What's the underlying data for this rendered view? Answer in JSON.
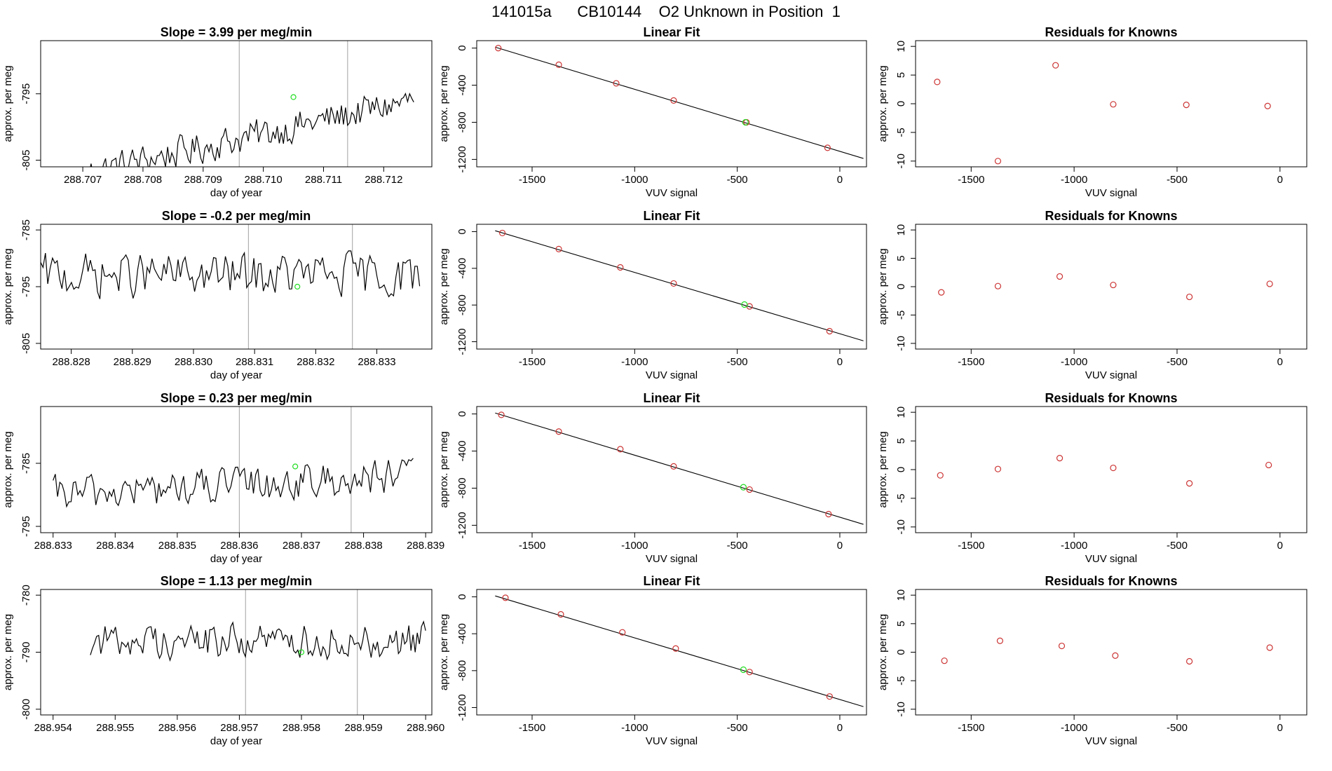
{
  "page": {
    "title": "141015a      CB10144    O2 Unknown in Position  1"
  },
  "colors": {
    "unknown": "#22dd22",
    "known": "#cc3333",
    "line": "#000000",
    "vline": "#b0b0b0",
    "axis": "#000000"
  },
  "chart_data": [
    {
      "type": "line",
      "row": 0,
      "col": 0,
      "title": "Slope =  3.99  per meg/min",
      "xlabel": "day of year",
      "ylabel": "approx. per meg",
      "xlim": [
        288.7063,
        288.7128
      ],
      "ylim": [
        -806,
        -787
      ],
      "xticks": [
        288.707,
        288.708,
        288.709,
        288.71,
        288.711,
        288.712
      ],
      "xtick_labels": [
        "288.707",
        "288.708",
        "288.709",
        "288.710",
        "288.711",
        "288.712"
      ],
      "yticks": [
        -795,
        -805
      ],
      "ytick_labels": [
        "-795",
        "-805"
      ],
      "x_start": 288.707,
      "x_end": 288.7125,
      "y_start": -807,
      "y_end": -796,
      "noise": 2.2,
      "vlines": [
        288.7096,
        288.7114
      ],
      "unknown_point": {
        "x": 288.7105,
        "y": -795.5
      }
    },
    {
      "type": "scatter",
      "row": 0,
      "col": 1,
      "title": "Linear Fit",
      "xlabel": "VUV signal",
      "ylabel": "approx. per meg",
      "xlim": [
        -1770,
        130
      ],
      "ylim": [
        -1280,
        80
      ],
      "xticks": [
        -1500,
        -1000,
        -500,
        0
      ],
      "xtick_labels": [
        "-1500",
        "-1000",
        "-500",
        "0"
      ],
      "yticks": [
        0,
        -400,
        -800,
        -1200
      ],
      "ytick_labels": [
        "0",
        "-400",
        "-800",
        "-1200"
      ],
      "fit_line": [
        [
          -1680,
          10
        ],
        [
          115,
          -1190
        ]
      ],
      "known_points": [
        [
          -1665,
          0
        ],
        [
          -1370,
          -180
        ],
        [
          -1090,
          -380
        ],
        [
          -810,
          -565
        ],
        [
          -455,
          -800
        ],
        [
          -60,
          -1075
        ]
      ],
      "unknown_point": {
        "x": -460,
        "y": -800
      }
    },
    {
      "type": "scatter",
      "row": 0,
      "col": 2,
      "title": "Residuals for Knowns",
      "xlabel": "VUV signal",
      "ylabel": "approx. per meg",
      "xlim": [
        -1770,
        130
      ],
      "ylim": [
        -11,
        11
      ],
      "xticks": [
        -1500,
        -1000,
        -500,
        0
      ],
      "xtick_labels": [
        "-1500",
        "-1000",
        "-500",
        "0"
      ],
      "yticks": [
        10,
        5,
        0,
        -5,
        -10
      ],
      "ytick_labels": [
        "10",
        "5",
        "0",
        "-5",
        "-10"
      ],
      "known_points": [
        [
          -1665,
          3.8
        ],
        [
          -1370,
          -10
        ],
        [
          -1090,
          6.7
        ],
        [
          -810,
          -0.1
        ],
        [
          -455,
          -0.2
        ],
        [
          -60,
          -0.4
        ]
      ]
    },
    {
      "type": "line",
      "row": 1,
      "col": 0,
      "title": "Slope =  -0.2  per meg/min",
      "xlabel": "day of year",
      "ylabel": "approx. per meg",
      "xlim": [
        288.8275,
        288.8339
      ],
      "ylim": [
        -806,
        -784
      ],
      "xticks": [
        288.828,
        288.829,
        288.83,
        288.831,
        288.832,
        288.833
      ],
      "xtick_labels": [
        "288.828",
        "288.829",
        "288.830",
        "288.831",
        "288.832",
        "288.833"
      ],
      "yticks": [
        -785,
        -795,
        -805
      ],
      "ytick_labels": [
        "-785",
        "-795",
        "-805"
      ],
      "x_start": 288.8275,
      "x_end": 288.8337,
      "y_start": -793,
      "y_end": -793,
      "noise": 3.5,
      "vlines": [
        288.8309,
        288.8326
      ],
      "unknown_point": {
        "x": 288.8317,
        "y": -795.0
      }
    },
    {
      "type": "scatter",
      "row": 1,
      "col": 1,
      "title": "Linear Fit",
      "xlabel": "VUV signal",
      "ylabel": "approx. per meg",
      "xlim": [
        -1770,
        130
      ],
      "ylim": [
        -1280,
        80
      ],
      "xticks": [
        -1500,
        -1000,
        -500,
        0
      ],
      "xtick_labels": [
        "-1500",
        "-1000",
        "-500",
        "0"
      ],
      "yticks": [
        0,
        -400,
        -800,
        -1200
      ],
      "ytick_labels": [
        "0",
        "-400",
        "-800",
        "-1200"
      ],
      "fit_line": [
        [
          -1680,
          10
        ],
        [
          115,
          -1190
        ]
      ],
      "known_points": [
        [
          -1645,
          -15
        ],
        [
          -1370,
          -190
        ],
        [
          -1070,
          -390
        ],
        [
          -810,
          -565
        ],
        [
          -440,
          -815
        ],
        [
          -50,
          -1085
        ]
      ],
      "unknown_point": {
        "x": -465,
        "y": -795
      }
    },
    {
      "type": "scatter",
      "row": 1,
      "col": 2,
      "title": "Residuals for Knowns",
      "xlabel": "VUV signal",
      "ylabel": "approx. per meg",
      "xlim": [
        -1770,
        130
      ],
      "ylim": [
        -11,
        11
      ],
      "xticks": [
        -1500,
        -1000,
        -500,
        0
      ],
      "xtick_labels": [
        "-1500",
        "-1000",
        "-500",
        "0"
      ],
      "yticks": [
        10,
        5,
        0,
        -5,
        -10
      ],
      "ytick_labels": [
        "10",
        "5",
        "0",
        "-5",
        "-10"
      ],
      "known_points": [
        [
          -1645,
          -1
        ],
        [
          -1370,
          0.1
        ],
        [
          -1070,
          1.8
        ],
        [
          -810,
          0.3
        ],
        [
          -440,
          -1.8
        ],
        [
          -50,
          0.5
        ]
      ]
    },
    {
      "type": "line",
      "row": 2,
      "col": 0,
      "title": "Slope =  0.23  per meg/min",
      "xlabel": "day of year",
      "ylabel": "approx. per meg",
      "xlim": [
        288.8328,
        288.8391
      ],
      "ylim": [
        -796,
        -776
      ],
      "xticks": [
        288.833,
        288.834,
        288.835,
        288.836,
        288.837,
        288.838,
        288.839
      ],
      "xtick_labels": [
        "288.833",
        "288.834",
        "288.835",
        "288.836",
        "288.837",
        "288.838",
        "288.839"
      ],
      "yticks": [
        -785,
        -795
      ],
      "ytick_labels": [
        "-785",
        "-795"
      ],
      "x_start": 288.833,
      "x_end": 288.8388,
      "y_start": -790,
      "y_end": -787,
      "noise": 2.6,
      "vlines": [
        288.836,
        288.8378
      ],
      "unknown_point": {
        "x": 288.8369,
        "y": -785.5
      }
    },
    {
      "type": "scatter",
      "row": 2,
      "col": 1,
      "title": "Linear Fit",
      "xlabel": "VUV signal",
      "ylabel": "approx. per meg",
      "xlim": [
        -1770,
        130
      ],
      "ylim": [
        -1280,
        80
      ],
      "xticks": [
        -1500,
        -1000,
        -500,
        0
      ],
      "xtick_labels": [
        "-1500",
        "-1000",
        "-500",
        "0"
      ],
      "yticks": [
        0,
        -400,
        -800,
        -1200
      ],
      "ytick_labels": [
        "0",
        "-400",
        "-800",
        "-1200"
      ],
      "fit_line": [
        [
          -1680,
          10
        ],
        [
          115,
          -1190
        ]
      ],
      "known_points": [
        [
          -1650,
          -10
        ],
        [
          -1370,
          -190
        ],
        [
          -1070,
          -380
        ],
        [
          -810,
          -565
        ],
        [
          -440,
          -815
        ],
        [
          -55,
          -1080
        ]
      ],
      "unknown_point": {
        "x": -470,
        "y": -790
      }
    },
    {
      "type": "scatter",
      "row": 2,
      "col": 2,
      "title": "Residuals for Knowns",
      "xlabel": "VUV signal",
      "ylabel": "approx. per meg",
      "xlim": [
        -1770,
        130
      ],
      "ylim": [
        -11,
        11
      ],
      "xticks": [
        -1500,
        -1000,
        -500,
        0
      ],
      "xtick_labels": [
        "-1500",
        "-1000",
        "-500",
        "0"
      ],
      "yticks": [
        10,
        5,
        0,
        -5,
        -10
      ],
      "ytick_labels": [
        "10",
        "5",
        "0",
        "-5",
        "-10"
      ],
      "known_points": [
        [
          -1650,
          -1
        ],
        [
          -1370,
          0.1
        ],
        [
          -1070,
          2
        ],
        [
          -810,
          0.3
        ],
        [
          -440,
          -2.4
        ],
        [
          -55,
          0.8
        ]
      ]
    },
    {
      "type": "line",
      "row": 3,
      "col": 0,
      "title": "Slope =  1.13  per meg/min",
      "xlabel": "day of year",
      "ylabel": "approx. per meg",
      "xlim": [
        288.9538,
        288.9601
      ],
      "ylim": [
        -801,
        -779
      ],
      "xticks": [
        288.954,
        288.955,
        288.956,
        288.957,
        288.958,
        288.959,
        288.96
      ],
      "xtick_labels": [
        "288.954",
        "288.955",
        "288.956",
        "288.957",
        "288.958",
        "288.959",
        "288.960"
      ],
      "yticks": [
        -780,
        -790,
        -800
      ],
      "ytick_labels": [
        "-780",
        "-790",
        "-800"
      ],
      "x_start": 288.9546,
      "x_end": 288.96,
      "y_start": -788,
      "y_end": -788,
      "noise": 2.8,
      "vlines": [
        288.9571,
        288.9589
      ],
      "unknown_point": {
        "x": 288.958,
        "y": -790.0
      }
    },
    {
      "type": "scatter",
      "row": 3,
      "col": 1,
      "title": "Linear Fit",
      "xlabel": "VUV signal",
      "ylabel": "approx. per meg",
      "xlim": [
        -1770,
        130
      ],
      "ylim": [
        -1280,
        80
      ],
      "xticks": [
        -1500,
        -1000,
        -500,
        0
      ],
      "xtick_labels": [
        "-1500",
        "-1000",
        "-500",
        "0"
      ],
      "yticks": [
        0,
        -400,
        -800,
        -1200
      ],
      "ytick_labels": [
        "0",
        "-400",
        "-800",
        "-1200"
      ],
      "fit_line": [
        [
          -1680,
          10
        ],
        [
          115,
          -1190
        ]
      ],
      "known_points": [
        [
          -1630,
          -10
        ],
        [
          -1360,
          -190
        ],
        [
          -1060,
          -385
        ],
        [
          -800,
          -560
        ],
        [
          -440,
          -815
        ],
        [
          -50,
          -1080
        ]
      ],
      "unknown_point": {
        "x": -470,
        "y": -790
      }
    },
    {
      "type": "scatter",
      "row": 3,
      "col": 2,
      "title": "Residuals for Knowns",
      "xlabel": "VUV signal",
      "ylabel": "approx. per meg",
      "xlim": [
        -1770,
        130
      ],
      "ylim": [
        -11,
        11
      ],
      "xticks": [
        -1500,
        -1000,
        -500,
        0
      ],
      "xtick_labels": [
        "-1500",
        "-1000",
        "-500",
        "0"
      ],
      "yticks": [
        10,
        5,
        0,
        -5,
        -10
      ],
      "ytick_labels": [
        "10",
        "5",
        "0",
        "-5",
        "-10"
      ],
      "known_points": [
        [
          -1630,
          -1.5
        ],
        [
          -1360,
          2
        ],
        [
          -1060,
          1.1
        ],
        [
          -800,
          -0.6
        ],
        [
          -440,
          -1.6
        ],
        [
          -50,
          0.8
        ]
      ]
    }
  ]
}
